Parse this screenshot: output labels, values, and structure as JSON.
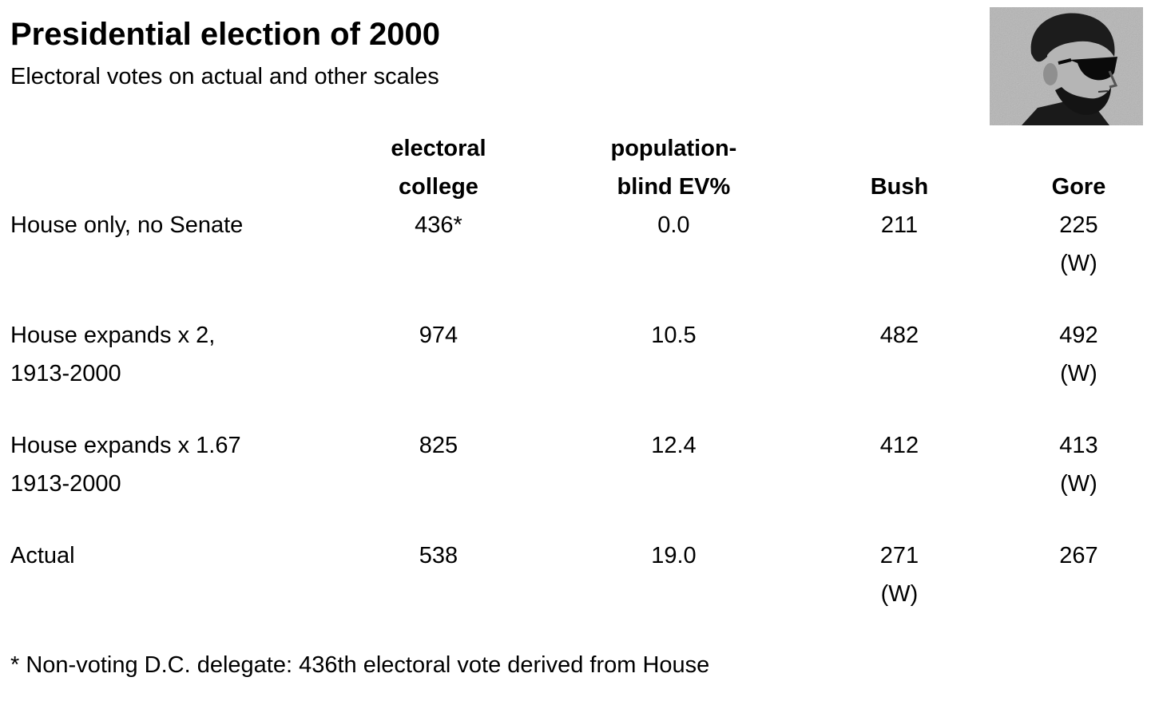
{
  "header": {
    "title": "Presidential election of 2000",
    "subtitle": "Electoral votes on actual and other scales"
  },
  "table": {
    "columns": {
      "label": "",
      "electoral_college": [
        "electoral",
        "college"
      ],
      "population_blind": [
        "population-",
        "blind EV%"
      ],
      "bush": "Bush",
      "gore": "Gore"
    },
    "rows": [
      {
        "label": [
          "House only, no Senate"
        ],
        "electoral_college": "436*",
        "population_blind": "0.0",
        "bush": "211",
        "bush_win": "",
        "gore": "225",
        "gore_win": "(W)"
      },
      {
        "label": [
          "House expands x 2,",
          "1913-2000"
        ],
        "electoral_college": "974",
        "population_blind": "10.5",
        "bush": "482",
        "bush_win": "",
        "gore": "492",
        "gore_win": "(W)"
      },
      {
        "label": [
          "House expands x 1.67",
          "1913-2000"
        ],
        "electoral_college": "825",
        "population_blind": "12.4",
        "bush": "412",
        "bush_win": "",
        "gore": "413",
        "gore_win": "(W)"
      },
      {
        "label": [
          "Actual"
        ],
        "electoral_college": "538",
        "population_blind": "19.0",
        "bush": "271",
        "bush_win": "(W)",
        "gore": "267",
        "gore_win": ""
      }
    ]
  },
  "footnote": "* Non-voting D.C. delegate: 436th electoral vote derived from House",
  "portrait": {
    "icon": "lincoln-sunglasses-portrait-icon"
  }
}
